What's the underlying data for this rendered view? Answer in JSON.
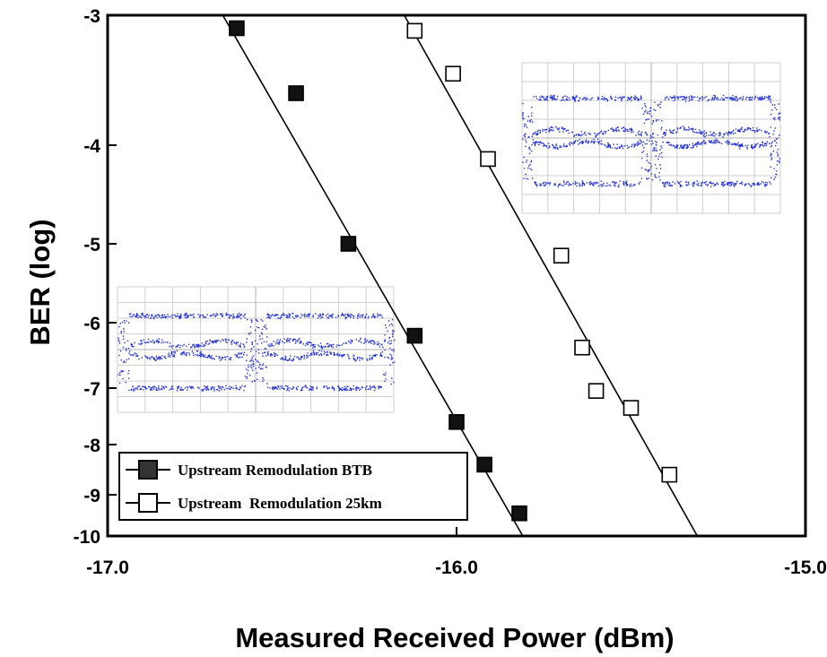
{
  "chart_data": {
    "type": "scatter",
    "title": "",
    "xlabel": "Measured Received Power (dBm)",
    "ylabel": "BER (log)",
    "xlim": [
      -17.0,
      -15.0
    ],
    "ylim": [
      -10,
      -3
    ],
    "y_scale": "-log(-log(BER)) style probability scale",
    "x_ticks": [
      -17.0,
      -16.0,
      -15.0
    ],
    "x_tick_labels": [
      "-17.0",
      "-16.0",
      "-15.0"
    ],
    "y_ticks": [
      -3,
      -4,
      -5,
      -6,
      -7,
      -8,
      -9,
      -10
    ],
    "y_tick_labels": [
      "-3",
      "-4",
      "-5",
      "-6",
      "-7",
      "-8",
      "-9",
      "-10"
    ],
    "legend_position": "bottom-left",
    "grid": false,
    "series": [
      {
        "name": "Upstream Remodulation BTB",
        "marker": "filled-square",
        "color": "#000000",
        "x": [
          -16.63,
          -16.46,
          -16.31,
          -16.12,
          -16.0,
          -15.92,
          -15.82
        ],
        "y": [
          -3.1,
          -3.6,
          -5.0,
          -6.2,
          -7.6,
          -8.4,
          -9.45
        ],
        "fit_line": {
          "x": [
            -16.67,
            -15.81
          ],
          "y": [
            -3.0,
            -10.0
          ]
        }
      },
      {
        "name": "Upstream  Remodulation 25km",
        "marker": "open-square",
        "color": "#000000",
        "x": [
          -16.12,
          -16.01,
          -15.91,
          -15.7,
          -15.64,
          -15.6,
          -15.5,
          -15.39
        ],
        "y": [
          -3.12,
          -3.45,
          -4.14,
          -5.15,
          -6.38,
          -7.05,
          -7.35,
          -8.6
        ],
        "fit_line": {
          "x": [
            -16.15,
            -15.31
          ],
          "y": [
            -3.0,
            -10.0
          ]
        }
      }
    ]
  }
}
